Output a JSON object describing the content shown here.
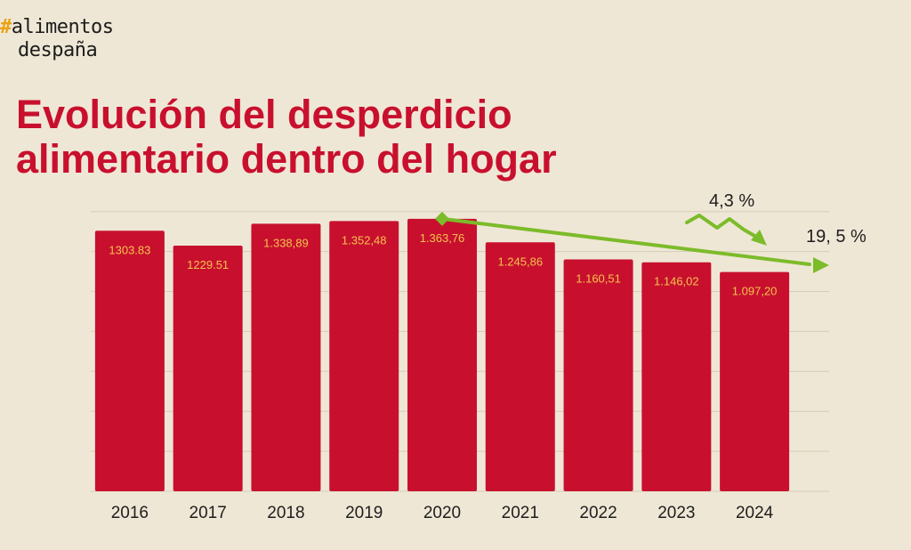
{
  "logo": {
    "hash": "#",
    "line1": "alimentos",
    "line2": "despaña"
  },
  "colors": {
    "background": "#efe7d5",
    "bar": "#c8102e",
    "bar_label": "#f3c24d",
    "arrow": "#7cbb2a",
    "title": "#c8102e",
    "grid": "#d6cdb8"
  },
  "chart_data": {
    "type": "bar",
    "title": "Evolución del desperdicio alimentario dentro del hogar",
    "title_lines": [
      "Evolución del desperdicio",
      "alimentario dentro del hogar"
    ],
    "xlabel": "",
    "ylabel": "",
    "categories": [
      "2016",
      "2017",
      "2018",
      "2019",
      "2020",
      "2021",
      "2022",
      "2023",
      "2024"
    ],
    "values": [
      1303.83,
      1229.51,
      1338.89,
      1352.48,
      1363.76,
      1245.86,
      1160.51,
      1146.02,
      1097.2
    ],
    "value_labels": [
      "1303.83",
      "1229.51",
      "1.338,89",
      "1.352,48",
      "1.363,76",
      "1.245,86",
      "1.160,51",
      "1.146,02",
      "1.097,20"
    ],
    "ylim": [
      0,
      1400
    ],
    "grid": true,
    "legend": "none",
    "annotations": [
      {
        "text": "4,3 %",
        "meaning": "decrease 2023 to 2024"
      },
      {
        "text": "19, 5 %",
        "meaning": "decrease 2020 to 2024"
      }
    ]
  }
}
